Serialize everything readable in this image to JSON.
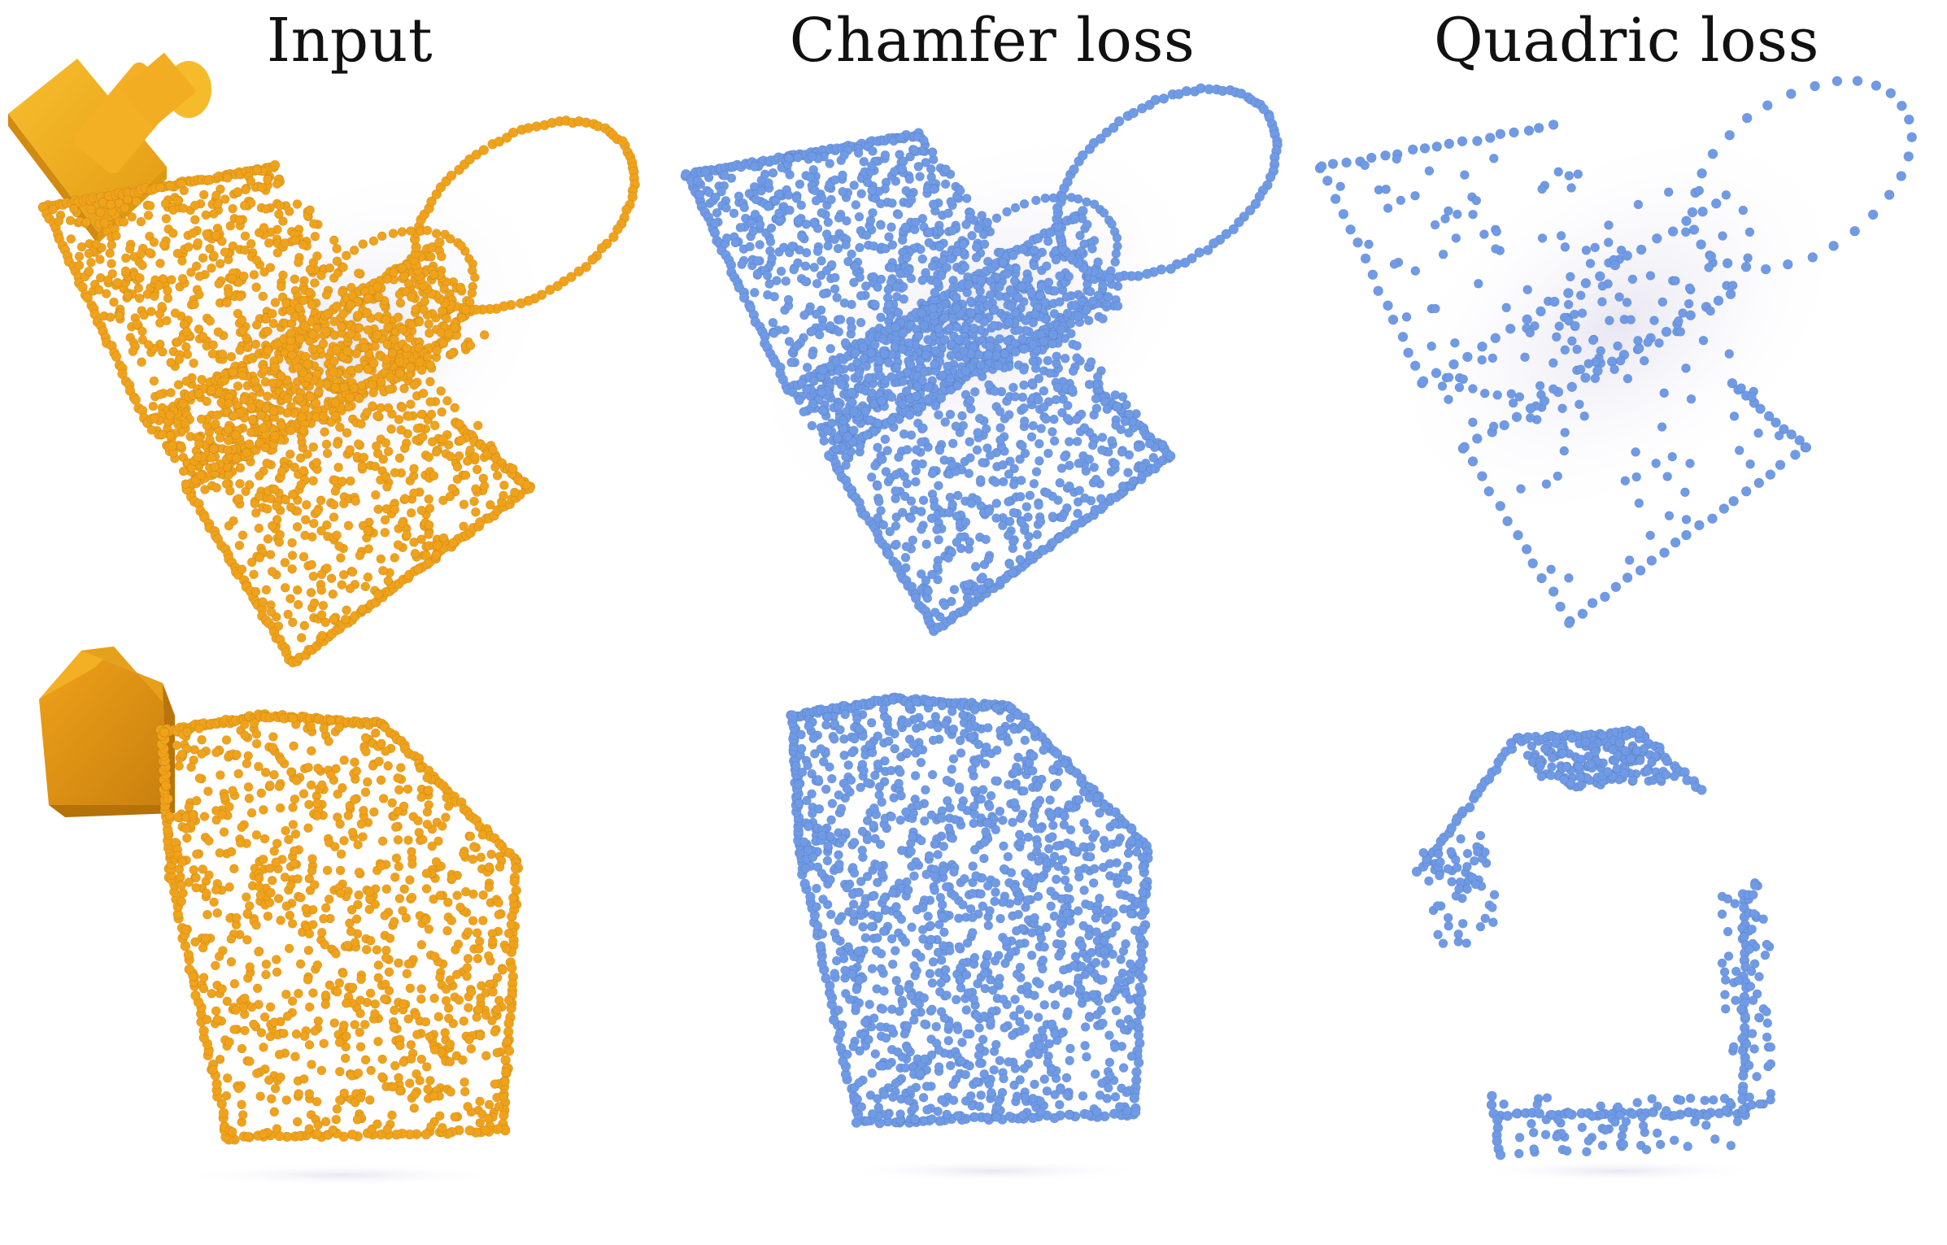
{
  "columns": [
    {
      "id": "input",
      "title": "Input",
      "color": "#f0a21a"
    },
    {
      "id": "chamfer",
      "title": "Chamfer loss",
      "color": "#6f9ae6"
    },
    {
      "id": "quadric",
      "title": "Quadric loss",
      "color": "#6f9ae6"
    }
  ],
  "rows": [
    {
      "id": "row-1",
      "shape": "rectangular-plate-with-cylinder"
    },
    {
      "id": "row-2",
      "shape": "pentagonal-prism"
    }
  ],
  "colors": {
    "input_points": "#f0a21a",
    "output_points": "#6f9ae6",
    "thumbnail_face": "#f4b220",
    "thumbnail_shade": "#d9921a",
    "shadow": "#ecebf3"
  }
}
